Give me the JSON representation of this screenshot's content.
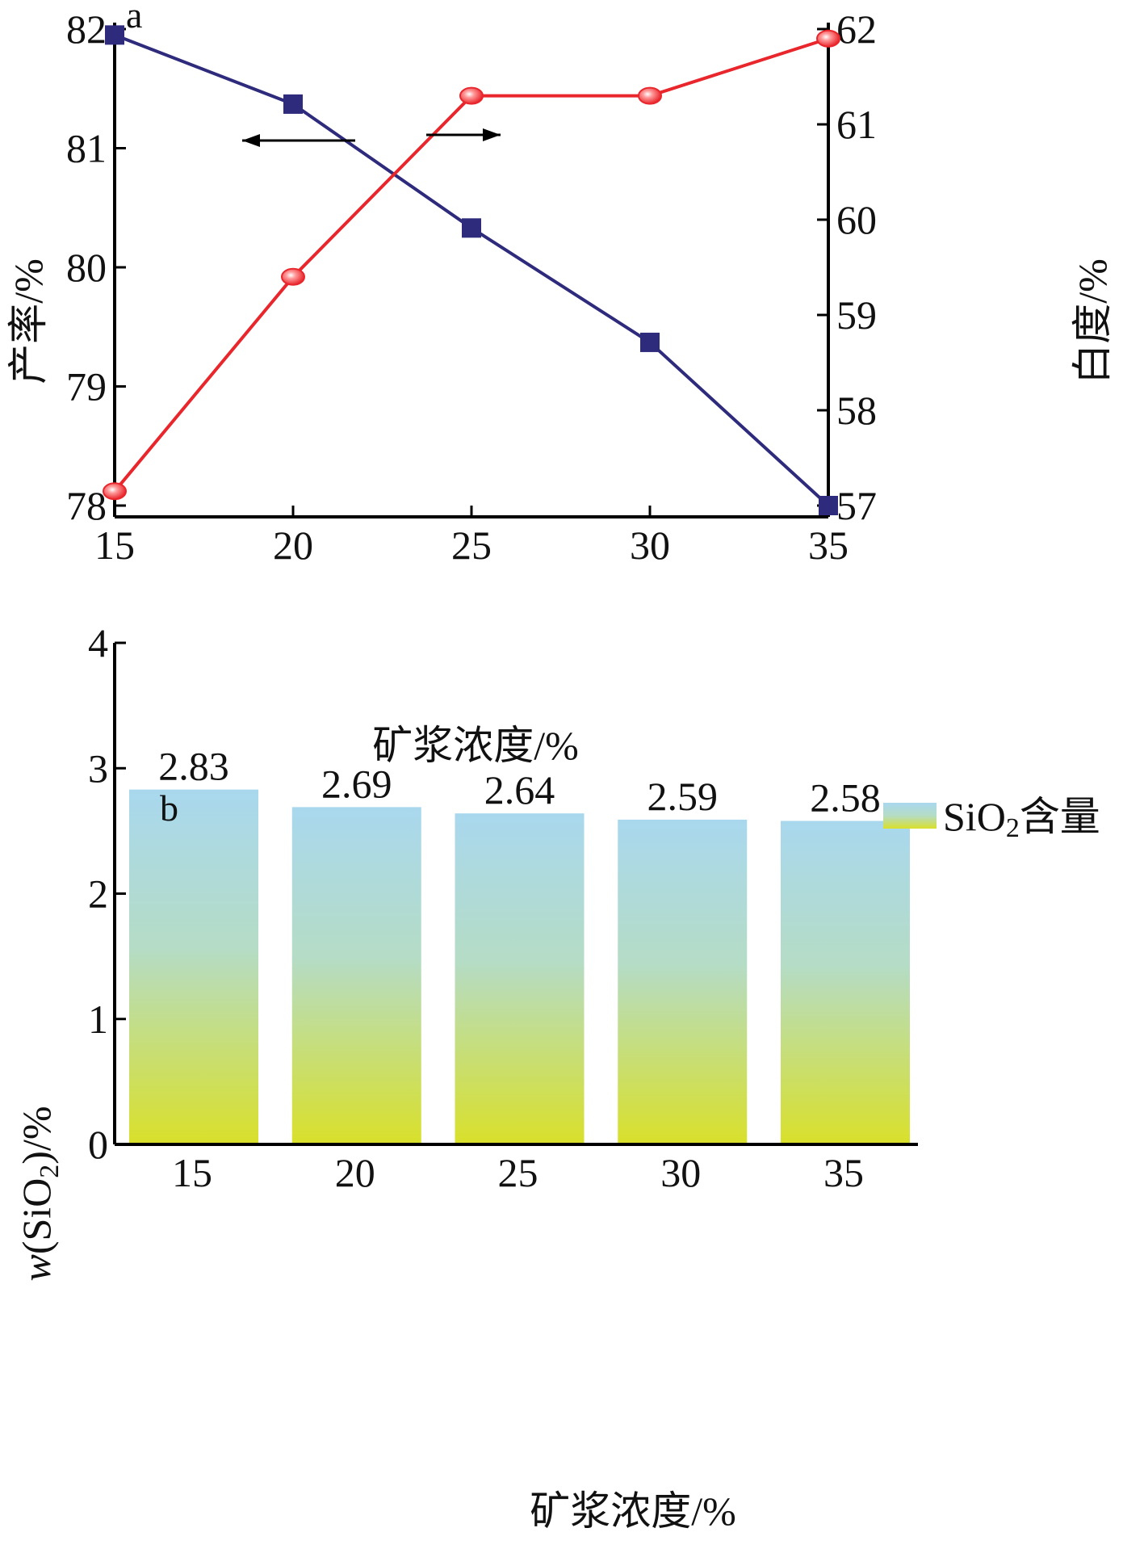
{
  "chart_data": [
    {
      "panel": "a",
      "type": "line",
      "x": [
        15,
        20,
        25,
        30,
        35
      ],
      "xlim": [
        15,
        35
      ],
      "xticks": [
        15,
        20,
        25,
        30,
        35
      ],
      "xlabel": "矿浆浓度/%",
      "ylabel": "产率/%",
      "ylim": [
        78,
        82
      ],
      "yticks": [
        78,
        79,
        80,
        81,
        82
      ],
      "y2label": "白度/%",
      "y2lim": [
        57,
        62
      ],
      "y2ticks": [
        57,
        58,
        59,
        60,
        61,
        62
      ],
      "series": [
        {
          "axis": "left",
          "marker": "square",
          "color": "#2e2a7c",
          "values": [
            81.95,
            81.37,
            80.33,
            79.37,
            78.0
          ]
        },
        {
          "axis": "right",
          "marker": "circle",
          "color": "#e8262c",
          "values": [
            57.15,
            59.4,
            61.3,
            61.3,
            61.9
          ]
        }
      ],
      "annotations": [
        {
          "type": "arrow",
          "points_to": "left"
        },
        {
          "type": "arrow",
          "points_to": "right"
        }
      ],
      "grid": false,
      "legend": "none"
    },
    {
      "panel": "b",
      "type": "bar",
      "categories": [
        "15",
        "20",
        "25",
        "30",
        "35"
      ],
      "values": [
        2.83,
        2.69,
        2.64,
        2.59,
        2.58
      ],
      "value_labels": [
        "2.83",
        "2.69",
        "2.64",
        "2.59",
        "2.58"
      ],
      "xlabel": "矿浆浓度/%",
      "ylabel_main": "w",
      "ylabel_rest": "(SiO",
      "ylabel_sub": "2",
      "ylabel_end": ")/%",
      "ylim": [
        0,
        4
      ],
      "yticks": [
        0,
        1,
        2,
        3,
        4
      ],
      "legend": {
        "position": "top-right",
        "label_main": "SiO",
        "label_sub": "2",
        "label_rest": "含量"
      },
      "bar_gradient": {
        "top": "#a9d8ee",
        "middle": "#b5dcc5",
        "bottom": "#d9e02a"
      },
      "grid": false
    }
  ]
}
